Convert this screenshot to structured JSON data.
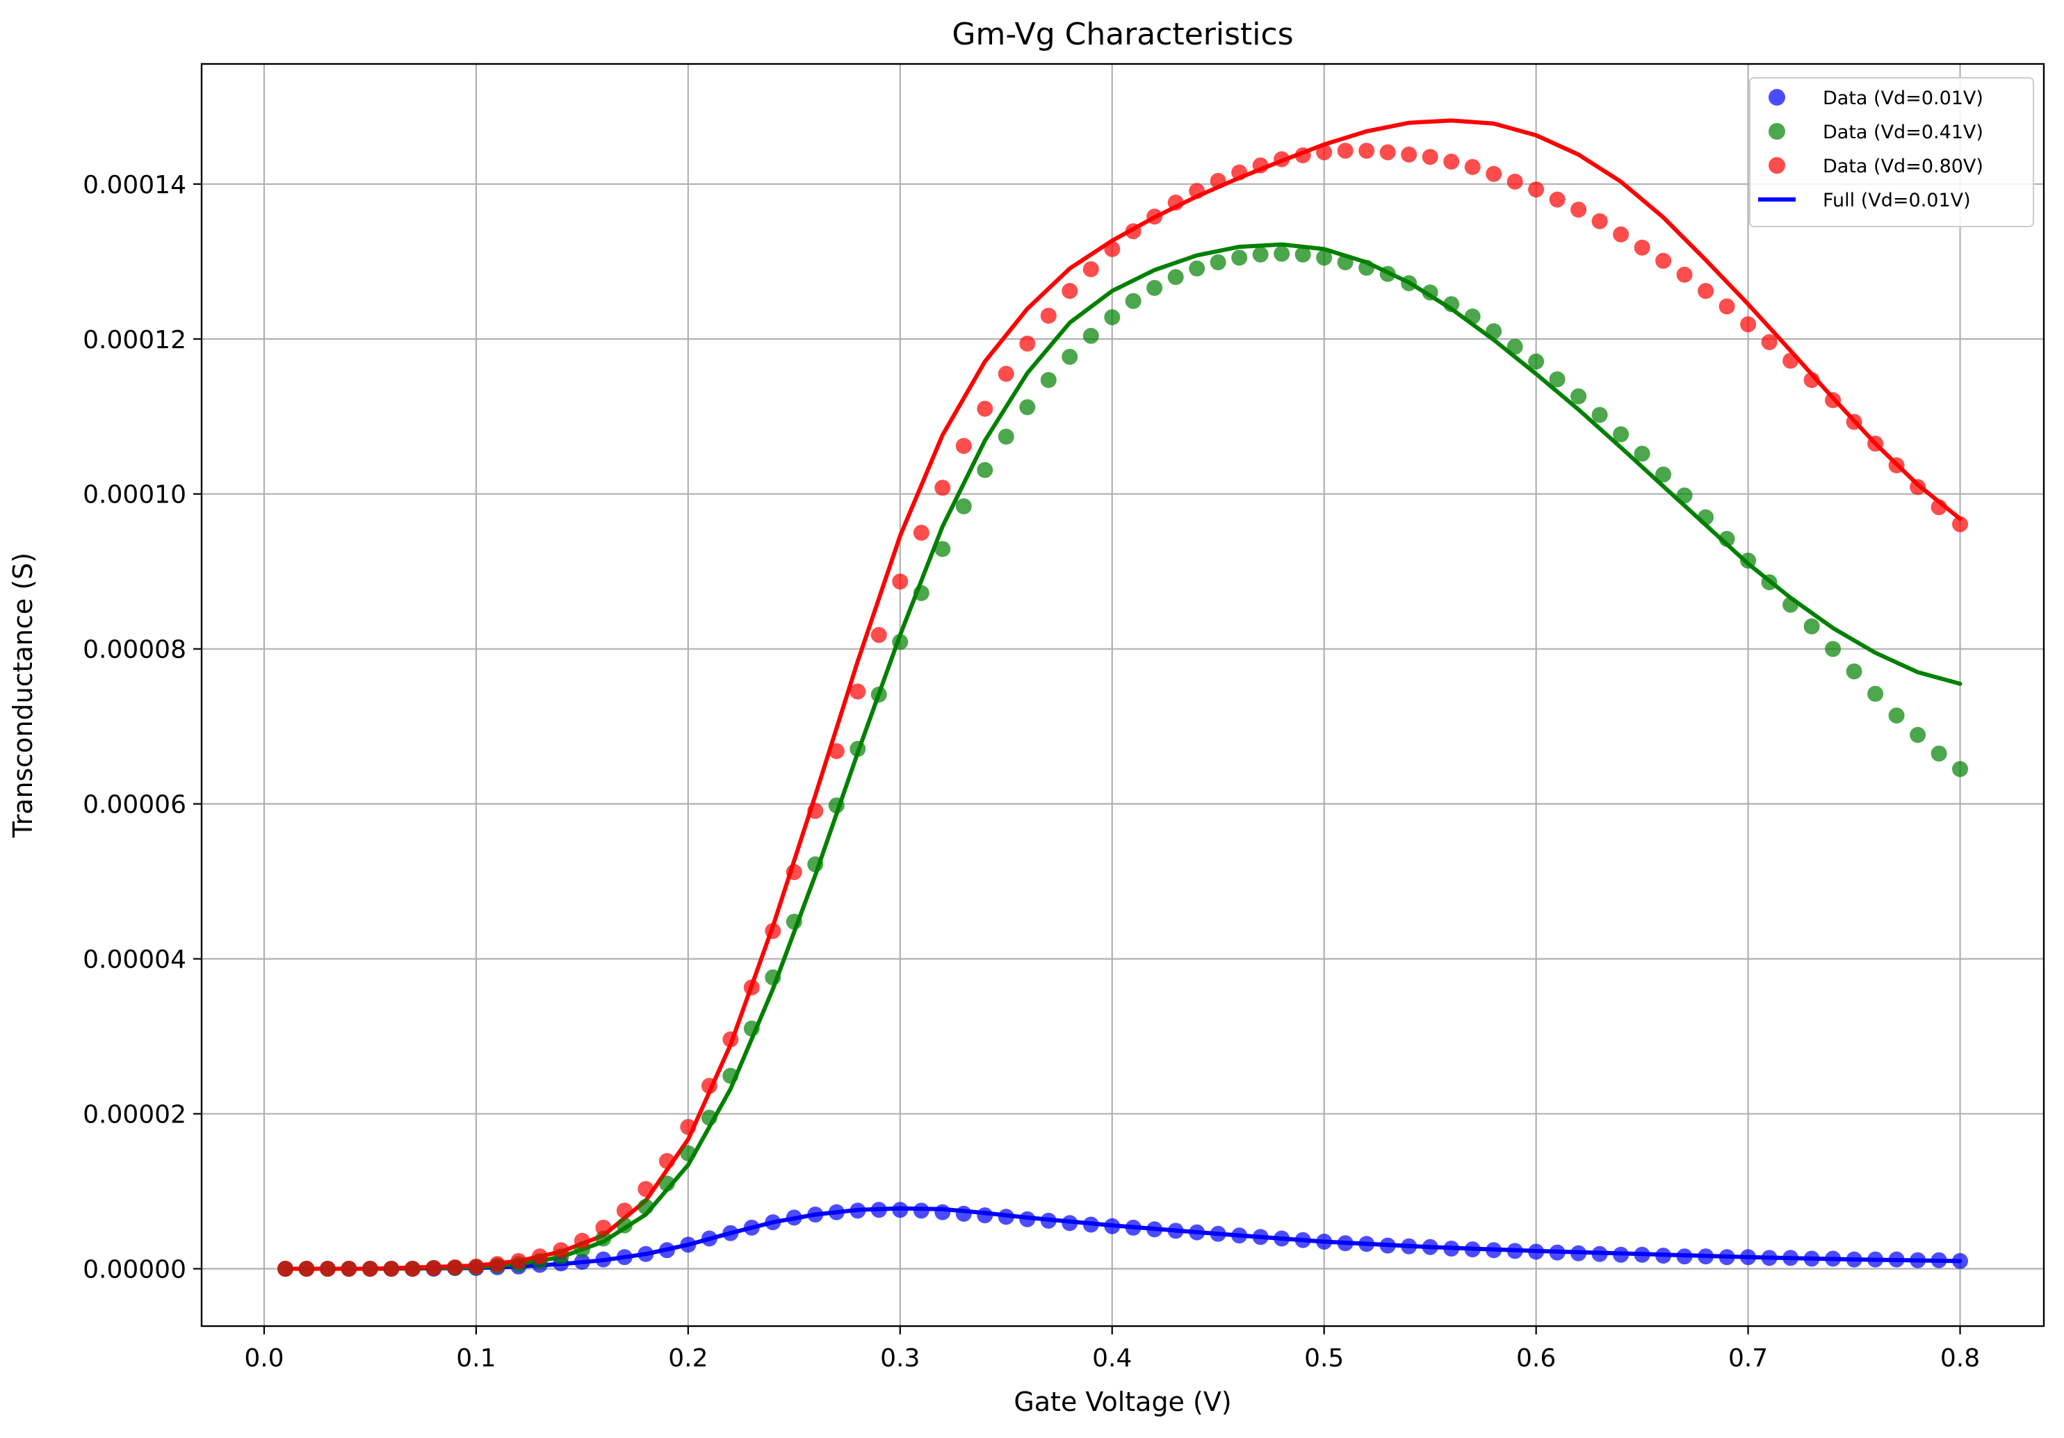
{
  "chart_data": {
    "type": "scatter",
    "title": "Gm-Vg Characteristics",
    "xlabel": "Gate Voltage (V)",
    "ylabel": "Transconductance (S)",
    "xlim": [
      -0.0295,
      0.8395
    ],
    "ylim": [
      -7.4e-06,
      0.0001555
    ],
    "grid": true,
    "legend_position": "top-right",
    "x_ticks": [
      "0.0",
      "0.1",
      "0.2",
      "0.3",
      "0.4",
      "0.5",
      "0.6",
      "0.7",
      "0.8"
    ],
    "y_ticks": [
      "0.00000",
      "0.00002",
      "0.00004",
      "0.00006",
      "0.00008",
      "0.00010",
      "0.00012",
      "0.00014"
    ],
    "series": [
      {
        "name": "Data (Vd=0.01V)",
        "kind": "points",
        "color": "#0000ff",
        "x": [
          0.01,
          0.02,
          0.03,
          0.04,
          0.05,
          0.06,
          0.07,
          0.08,
          0.09,
          0.1,
          0.11,
          0.12,
          0.13,
          0.14,
          0.15,
          0.16,
          0.17,
          0.18,
          0.19,
          0.2,
          0.21,
          0.22,
          0.23,
          0.24,
          0.25,
          0.26,
          0.27,
          0.28,
          0.29,
          0.3,
          0.31,
          0.32,
          0.33,
          0.34,
          0.35,
          0.36,
          0.37,
          0.38,
          0.39,
          0.4,
          0.41,
          0.42,
          0.43,
          0.44,
          0.45,
          0.46,
          0.47,
          0.48,
          0.49,
          0.5,
          0.51,
          0.52,
          0.53,
          0.54,
          0.55,
          0.56,
          0.57,
          0.58,
          0.59,
          0.6,
          0.61,
          0.62,
          0.63,
          0.64,
          0.65,
          0.66,
          0.67,
          0.68,
          0.69,
          0.7,
          0.71,
          0.72,
          0.73,
          0.74,
          0.75,
          0.76,
          0.77,
          0.78,
          0.79,
          0.8
        ],
        "y": [
          0,
          0,
          0,
          0,
          0,
          0,
          0,
          0,
          1e-07,
          1e-07,
          2e-07,
          3e-07,
          5e-07,
          7e-07,
          9e-07,
          1.2e-06,
          1.5e-06,
          1.9e-06,
          2.4e-06,
          3.1e-06,
          3.9e-06,
          4.6e-06,
          5.3e-06,
          6e-06,
          6.6e-06,
          7e-06,
          7.3e-06,
          7.5e-06,
          7.6e-06,
          7.6e-06,
          7.5e-06,
          7.3e-06,
          7.1e-06,
          6.9e-06,
          6.7e-06,
          6.4e-06,
          6.2e-06,
          5.9e-06,
          5.7e-06,
          5.5e-06,
          5.3e-06,
          5.1e-06,
          4.9e-06,
          4.7e-06,
          4.5e-06,
          4.3e-06,
          4.1e-06,
          3.9e-06,
          3.7e-06,
          3.5e-06,
          3.3e-06,
          3.2e-06,
          3e-06,
          2.9e-06,
          2.8e-06,
          2.6e-06,
          2.5e-06,
          2.4e-06,
          2.3e-06,
          2.2e-06,
          2.1e-06,
          2e-06,
          1.9e-06,
          1.8e-06,
          1.8e-06,
          1.7e-06,
          1.6e-06,
          1.6e-06,
          1.5e-06,
          1.5e-06,
          1.4e-06,
          1.4e-06,
          1.3e-06,
          1.3e-06,
          1.2e-06,
          1.2e-06,
          1.2e-06,
          1.1e-06,
          1.1e-06,
          1e-06
        ]
      },
      {
        "name": "Data (Vd=0.41V)",
        "kind": "points",
        "color": "#008000",
        "x": [
          0.01,
          0.02,
          0.03,
          0.04,
          0.05,
          0.06,
          0.07,
          0.08,
          0.09,
          0.1,
          0.11,
          0.12,
          0.13,
          0.14,
          0.15,
          0.16,
          0.17,
          0.18,
          0.19,
          0.2,
          0.21,
          0.22,
          0.23,
          0.24,
          0.25,
          0.26,
          0.27,
          0.28,
          0.29,
          0.3,
          0.31,
          0.32,
          0.33,
          0.34,
          0.35,
          0.36,
          0.37,
          0.38,
          0.39,
          0.4,
          0.41,
          0.42,
          0.43,
          0.44,
          0.45,
          0.46,
          0.47,
          0.48,
          0.49,
          0.5,
          0.51,
          0.52,
          0.53,
          0.54,
          0.55,
          0.56,
          0.57,
          0.58,
          0.59,
          0.6,
          0.61,
          0.62,
          0.63,
          0.64,
          0.65,
          0.66,
          0.67,
          0.68,
          0.69,
          0.7,
          0.71,
          0.72,
          0.73,
          0.74,
          0.75,
          0.76,
          0.77,
          0.78,
          0.79,
          0.8
        ],
        "y": [
          0,
          0,
          0,
          0,
          0,
          0,
          0,
          1e-07,
          1e-07,
          2e-07,
          4e-07,
          6e-07,
          1e-06,
          1.6e-06,
          2.5e-06,
          3.9e-06,
          5.6e-06,
          8e-06,
          1.1e-05,
          1.49e-05,
          1.95e-05,
          2.49e-05,
          3.1e-05,
          3.76e-05,
          4.48e-05,
          5.22e-05,
          5.98e-05,
          6.71e-05,
          7.41e-05,
          8.09e-05,
          8.72e-05,
          9.29e-05,
          9.84e-05,
          0.0001031,
          0.0001074,
          0.0001112,
          0.0001147,
          0.0001177,
          0.0001204,
          0.0001228,
          0.0001249,
          0.0001266,
          0.000128,
          0.0001291,
          0.0001299,
          0.0001305,
          0.0001309,
          0.000131,
          0.0001309,
          0.0001305,
          0.0001299,
          0.0001292,
          0.0001284,
          0.0001272,
          0.000126,
          0.0001245,
          0.0001229,
          0.000121,
          0.000119,
          0.0001171,
          0.0001148,
          0.0001126,
          0.0001102,
          0.0001077,
          0.0001052,
          0.0001025,
          9.98e-05,
          9.7e-05,
          9.42e-05,
          9.14e-05,
          8.86e-05,
          8.57e-05,
          8.29e-05,
          8e-05,
          7.71e-05,
          7.42e-05,
          7.14e-05,
          6.89e-05,
          6.65e-05,
          6.45e-05
        ]
      },
      {
        "name": "Data (Vd=0.80V)",
        "kind": "points",
        "color": "#ff0000",
        "x": [
          0.01,
          0.02,
          0.03,
          0.04,
          0.05,
          0.06,
          0.07,
          0.08,
          0.09,
          0.1,
          0.11,
          0.12,
          0.13,
          0.14,
          0.15,
          0.16,
          0.17,
          0.18,
          0.19,
          0.2,
          0.21,
          0.22,
          0.23,
          0.24,
          0.25,
          0.26,
          0.27,
          0.28,
          0.29,
          0.3,
          0.31,
          0.32,
          0.33,
          0.34,
          0.35,
          0.36,
          0.37,
          0.38,
          0.39,
          0.4,
          0.41,
          0.42,
          0.43,
          0.44,
          0.45,
          0.46,
          0.47,
          0.48,
          0.49,
          0.5,
          0.51,
          0.52,
          0.53,
          0.54,
          0.55,
          0.56,
          0.57,
          0.58,
          0.59,
          0.6,
          0.61,
          0.62,
          0.63,
          0.64,
          0.65,
          0.66,
          0.67,
          0.68,
          0.69,
          0.7,
          0.71,
          0.72,
          0.73,
          0.74,
          0.75,
          0.76,
          0.77,
          0.78,
          0.79,
          0.8
        ],
        "y": [
          0,
          0,
          0,
          0,
          0,
          0,
          0,
          1e-07,
          2e-07,
          3e-07,
          6e-07,
          1e-06,
          1.6e-06,
          2.4e-06,
          3.6e-06,
          5.3e-06,
          7.5e-06,
          1.03e-05,
          1.39e-05,
          1.83e-05,
          2.36e-05,
          2.96e-05,
          3.63e-05,
          4.36e-05,
          5.12e-05,
          5.91e-05,
          6.68e-05,
          7.45e-05,
          8.18e-05,
          8.87e-05,
          9.5e-05,
          0.0001008,
          0.0001062,
          0.000111,
          0.0001155,
          0.0001194,
          0.000123,
          0.0001262,
          0.000129,
          0.0001316,
          0.0001339,
          0.0001358,
          0.0001376,
          0.0001391,
          0.0001404,
          0.0001415,
          0.0001424,
          0.0001432,
          0.0001437,
          0.0001441,
          0.0001443,
          0.0001443,
          0.0001441,
          0.0001438,
          0.0001435,
          0.0001429,
          0.0001422,
          0.0001413,
          0.0001403,
          0.0001393,
          0.000138,
          0.0001367,
          0.0001352,
          0.0001335,
          0.0001318,
          0.0001301,
          0.0001283,
          0.0001262,
          0.0001242,
          0.0001219,
          0.0001196,
          0.0001172,
          0.0001147,
          0.0001121,
          0.0001093,
          0.0001065,
          0.0001037,
          0.0001009,
          9.83e-05,
          9.61e-05
        ]
      },
      {
        "name": "Full (Vd=0.01V)",
        "kind": "line",
        "color": "#0000ff",
        "x": [
          0.01,
          0.05,
          0.1,
          0.12,
          0.14,
          0.16,
          0.18,
          0.2,
          0.22,
          0.24,
          0.26,
          0.28,
          0.3,
          0.32,
          0.34,
          0.36,
          0.38,
          0.4,
          0.45,
          0.5,
          0.55,
          0.6,
          0.65,
          0.7,
          0.75,
          0.8
        ],
        "y": [
          0,
          0,
          1e-07,
          3e-07,
          6e-07,
          1.1e-06,
          1.9e-06,
          3.1e-06,
          4.6e-06,
          6e-06,
          7e-06,
          7.6e-06,
          7.8e-06,
          7.7e-06,
          7.2e-06,
          6.6e-06,
          6.1e-06,
          5.6e-06,
          4.5e-06,
          3.5e-06,
          2.8e-06,
          2.3e-06,
          1.9e-06,
          1.5e-06,
          1.2e-06,
          1e-06
        ]
      },
      {
        "name": "",
        "kind": "line",
        "color": "#008000",
        "x": [
          0.01,
          0.05,
          0.1,
          0.12,
          0.14,
          0.16,
          0.18,
          0.2,
          0.22,
          0.24,
          0.26,
          0.28,
          0.3,
          0.32,
          0.34,
          0.36,
          0.38,
          0.4,
          0.42,
          0.44,
          0.46,
          0.48,
          0.5,
          0.52,
          0.54,
          0.56,
          0.58,
          0.6,
          0.62,
          0.64,
          0.66,
          0.68,
          0.7,
          0.72,
          0.74,
          0.76,
          0.78,
          0.8
        ],
        "y": [
          0,
          0,
          2e-07,
          6e-07,
          1.5e-06,
          3.5e-06,
          7e-06,
          1.34e-05,
          2.32e-05,
          3.61e-05,
          5.08e-05,
          6.66e-05,
          8.18e-05,
          9.58e-05,
          0.0001069,
          0.0001156,
          0.0001221,
          0.0001262,
          0.0001289,
          0.0001308,
          0.0001319,
          0.0001322,
          0.0001316,
          0.0001299,
          0.0001273,
          0.0001239,
          0.0001199,
          0.0001155,
          0.0001109,
          0.000106,
          0.000101,
          9.6e-05,
          9.1e-05,
          8.66e-05,
          8.27e-05,
          7.95e-05,
          7.7e-05,
          7.55e-05
        ]
      },
      {
        "name": "",
        "kind": "line",
        "color": "#ff0000",
        "x": [
          0.01,
          0.05,
          0.1,
          0.12,
          0.14,
          0.16,
          0.18,
          0.2,
          0.22,
          0.24,
          0.26,
          0.28,
          0.3,
          0.32,
          0.34,
          0.36,
          0.38,
          0.4,
          0.42,
          0.44,
          0.46,
          0.48,
          0.5,
          0.52,
          0.54,
          0.56,
          0.58,
          0.6,
          0.62,
          0.64,
          0.66,
          0.68,
          0.7,
          0.72,
          0.74,
          0.76,
          0.78,
          0.8
        ],
        "y": [
          0,
          0,
          4e-07,
          1e-06,
          2.2e-06,
          4.3e-06,
          8.8e-06,
          1.67e-05,
          2.89e-05,
          4.42e-05,
          6.11e-05,
          7.84e-05,
          9.46e-05,
          0.0001076,
          0.0001171,
          0.0001239,
          0.0001291,
          0.0001327,
          0.0001357,
          0.0001384,
          0.0001408,
          0.000143,
          0.0001451,
          0.0001468,
          0.0001479,
          0.0001482,
          0.0001478,
          0.0001463,
          0.0001438,
          0.0001403,
          0.0001357,
          0.0001302,
          0.0001245,
          0.0001185,
          0.0001124,
          0.0001065,
          0.0001012,
          9.68e-05
        ]
      }
    ]
  }
}
